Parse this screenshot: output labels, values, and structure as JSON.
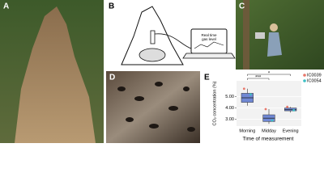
{
  "panels": {
    "a": "A",
    "b": "B",
    "c": "C",
    "d": "D",
    "e": "E"
  },
  "laptop_screen": [
    "Real time",
    "gas level"
  ],
  "chart_data": {
    "type": "box",
    "ylabel": "CO₂ concentration (%)",
    "xlabel": "Time of measurement",
    "categories": [
      "Morning",
      "Midday",
      "Evening"
    ],
    "stats": {
      "whislo": [
        4.2,
        2.6,
        3.6
      ],
      "q1": [
        4.5,
        2.8,
        3.75
      ],
      "med": [
        4.9,
        3.1,
        3.85
      ],
      "q3": [
        5.3,
        3.4,
        4.0
      ],
      "whishi": [
        5.7,
        3.9,
        4.1
      ]
    },
    "box_color": "#7088d4",
    "points": [
      {
        "name": "IC0039",
        "color": "#e8776b",
        "values": [
          5.7,
          3.9,
          4.1
        ]
      },
      {
        "name": "IC0054",
        "color": "#3bbfc4",
        "values": [
          5.2,
          2.9,
          3.8
        ]
      }
    ],
    "annotations": [
      "***",
      "*"
    ],
    "ylim": [
      2.4,
      6.4
    ],
    "yticks": [
      {
        "value": 3,
        "label": "3.00"
      },
      {
        "value": 4,
        "label": "4.00"
      },
      {
        "value": 5,
        "label": "5.00"
      }
    ],
    "grid": true
  }
}
